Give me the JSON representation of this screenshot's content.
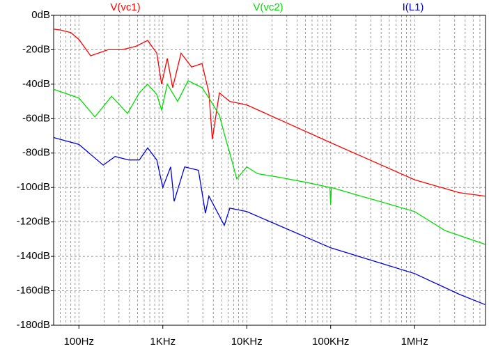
{
  "chart_data": {
    "type": "line",
    "log_x": true,
    "grid": true,
    "xlim": [
      50,
      7000000
    ],
    "ylim": [
      -180,
      0
    ],
    "xticks": [
      {
        "value": 100,
        "label": "100Hz"
      },
      {
        "value": 1000,
        "label": "1KHz"
      },
      {
        "value": 10000,
        "label": "10KHz"
      },
      {
        "value": 100000,
        "label": "100KHz"
      },
      {
        "value": 1000000,
        "label": "1MHz"
      }
    ],
    "yticks": [
      {
        "value": 0,
        "label": "0dB"
      },
      {
        "value": -20,
        "label": "-20dB"
      },
      {
        "value": -40,
        "label": "-40dB"
      },
      {
        "value": -60,
        "label": "-60dB"
      },
      {
        "value": -80,
        "label": "-80dB"
      },
      {
        "value": -100,
        "label": "-100dB"
      },
      {
        "value": -120,
        "label": "-120dB"
      },
      {
        "value": -140,
        "label": "-140dB"
      },
      {
        "value": -160,
        "label": "-160dB"
      },
      {
        "value": -180,
        "label": "-180dB"
      }
    ],
    "series": [
      {
        "name": "V(vc1)",
        "color": "#ff0000",
        "x": [
          50,
          60,
          80,
          100,
          138,
          223,
          326,
          478,
          660,
          847,
          968,
          1130,
          1310,
          1650,
          2200,
          2930,
          3540,
          3890,
          4720,
          6280,
          10000,
          100000,
          1000000,
          3400000,
          6900000
        ],
        "values": [
          -8,
          -8.5,
          -10,
          -14,
          -23.5,
          -20,
          -20,
          -18,
          -14.6,
          -22,
          -40,
          -25,
          -42,
          -22,
          -30,
          -28,
          -45,
          -72,
          -45,
          -50,
          -52,
          -74,
          -95.5,
          -103,
          -105
        ]
      },
      {
        "name": "V(vc2)",
        "color": "#00dd00",
        "x": [
          50,
          100,
          155,
          245,
          380,
          525,
          660,
          847,
          968,
          1130,
          1500,
          2000,
          2930,
          3540,
          4720,
          5700,
          6280,
          7600,
          10000,
          13500,
          23900,
          51000,
          98000,
          100000,
          102000,
          194000,
          379000,
          1000000,
          2300000,
          6900000
        ],
        "values": [
          -43,
          -48,
          -59,
          -47,
          -57,
          -45,
          -40,
          -46,
          -55,
          -40,
          -50,
          -38,
          -42,
          -48,
          -58,
          -73,
          -80,
          -95,
          -88,
          -92,
          -94,
          -97,
          -100,
          -110,
          -100,
          -104,
          -108,
          -114,
          -125,
          -133
        ]
      },
      {
        "name": "I(L1)",
        "color": "#0000dd",
        "x": [
          50,
          100,
          195,
          270,
          395,
          525,
          660,
          847,
          1000,
          1240,
          1365,
          1820,
          2660,
          3220,
          3540,
          5400,
          6280,
          10000,
          100000,
          1000000,
          3400000,
          6900000
        ],
        "values": [
          -71,
          -75,
          -87,
          -82,
          -84,
          -84,
          -77,
          -84,
          -100,
          -88,
          -108,
          -88,
          -90,
          -115,
          -105,
          -122,
          -112,
          -114,
          -135,
          -150,
          -162,
          -168
        ]
      }
    ]
  }
}
